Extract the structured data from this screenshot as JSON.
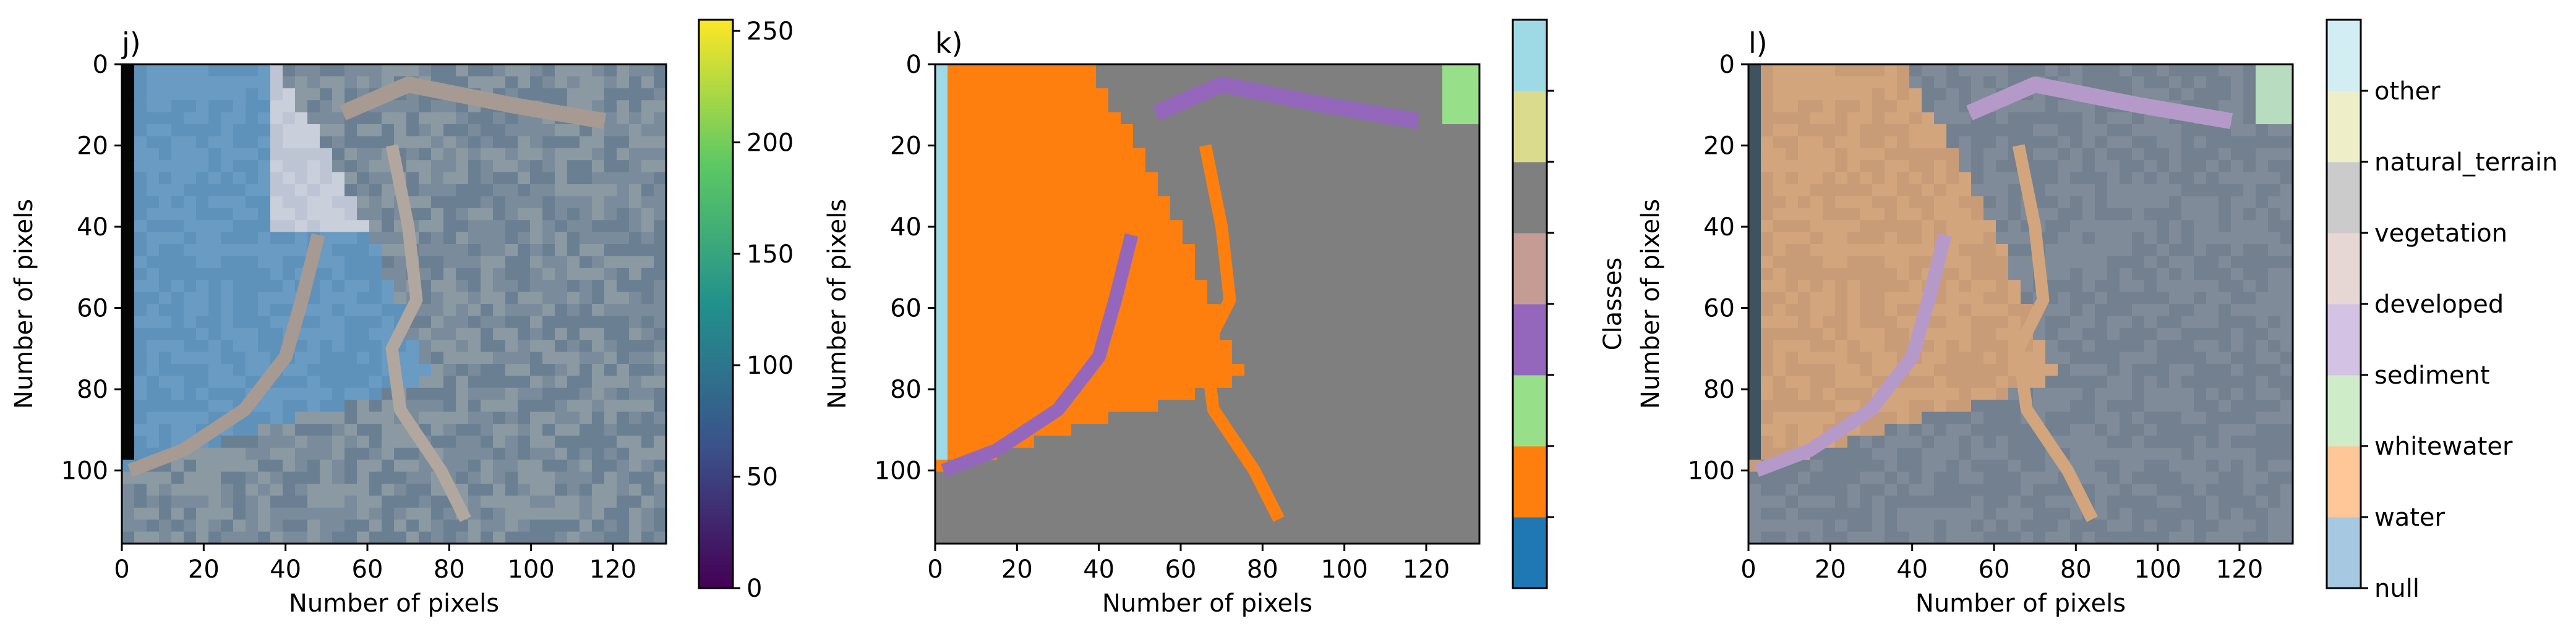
{
  "chart_data": [
    {
      "panel": "j",
      "type": "heatmap",
      "title": "j)",
      "xlabel": "Number of pixels",
      "ylabel": "Number of pixels",
      "xlim": [
        0,
        133
      ],
      "ylim": [
        118,
        0
      ],
      "xticks": [
        0,
        20,
        40,
        60,
        80,
        100,
        120
      ],
      "yticks": [
        0,
        20,
        40,
        60,
        80,
        100
      ],
      "colorbar": {
        "colormap": "viridis",
        "range": [
          0,
          255
        ],
        "ticks": [
          0,
          50,
          100,
          150,
          200,
          250
        ],
        "label": ""
      }
    },
    {
      "panel": "k",
      "type": "heatmap",
      "title": "k)",
      "xlabel": "Number of pixels",
      "ylabel": "Number of pixels",
      "xlim": [
        0,
        133
      ],
      "ylim": [
        118,
        0
      ],
      "xticks": [
        0,
        20,
        40,
        60,
        80,
        100,
        120
      ],
      "yticks": [
        0,
        20,
        40,
        60,
        80,
        100
      ],
      "colorbar": {
        "label": "Classes",
        "colors": [
          "#1f77b4",
          "#ff7f0e",
          "#98df8a",
          "#9467bd",
          "#c49c94",
          "#7f7f7f",
          "#dbdb8d",
          "#9edae5"
        ]
      }
    },
    {
      "panel": "l",
      "type": "heatmap",
      "title": "l)",
      "xlabel": "Number of pixels",
      "ylabel": "Number of pixels",
      "xlim": [
        0,
        133
      ],
      "ylim": [
        118,
        0
      ],
      "xticks": [
        0,
        20,
        40,
        60,
        80,
        100,
        120
      ],
      "yticks": [
        0,
        20,
        40,
        60,
        80,
        100
      ],
      "colorbar": {
        "classes": [
          "null",
          "water",
          "whitewater",
          "sediment",
          "developed",
          "vegetation",
          "natural_terrain",
          "other"
        ],
        "colors": [
          "#a6c8e0",
          "#ffc697",
          "#cfecc9",
          "#d4c2e5",
          "#e7d7d4",
          "#cbcbcb",
          "#eeeec9",
          "#d2eef2"
        ]
      }
    }
  ]
}
